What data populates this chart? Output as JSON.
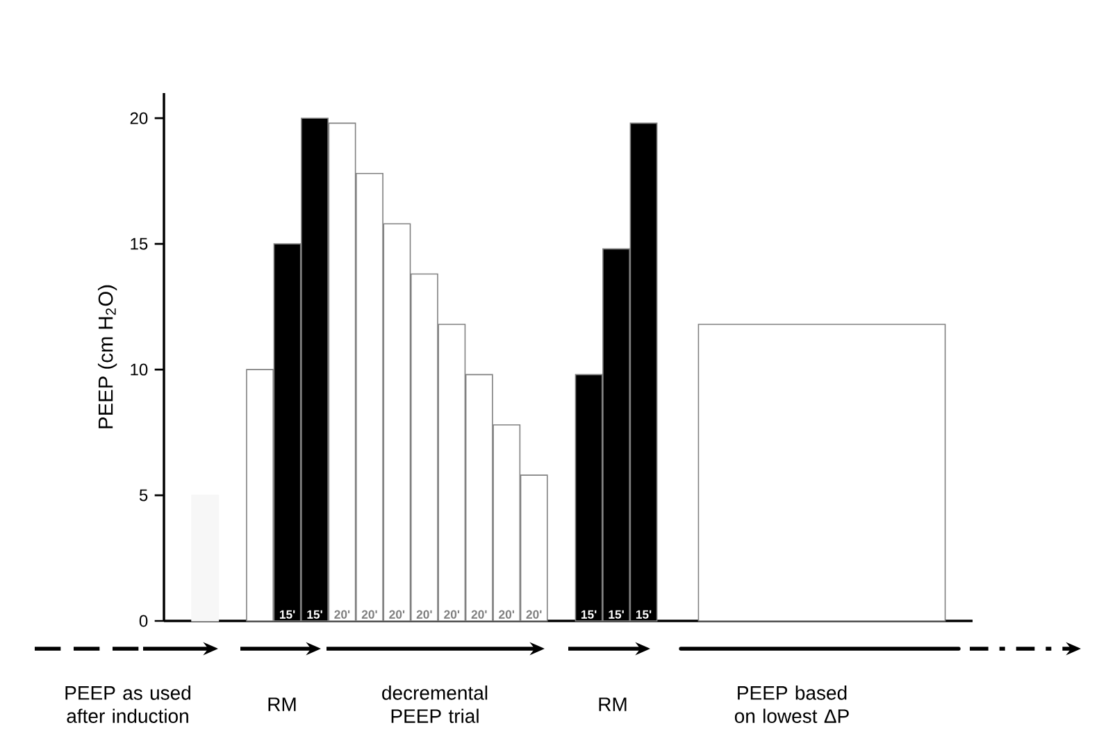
{
  "chart_data": {
    "type": "bar",
    "ylabel": "PEEP (cm H$_{2}$O)",
    "ylim": [
      0,
      21
    ],
    "yticks": [
      0,
      5,
      10,
      15,
      20
    ],
    "categories": [
      null,
      null,
      null,
      null,
      "15'",
      "15'",
      "20'",
      "20'",
      "20'",
      "20'",
      "20'",
      "20'",
      "20'",
      "20'",
      null,
      "15'",
      "15'",
      "15'",
      null,
      null,
      null,
      null,
      null,
      null,
      null,
      null,
      null,
      null,
      null
    ],
    "series": [
      {
        "values": [
          null,
          5,
          null,
          10,
          15,
          20,
          19.8,
          17.8,
          15.8,
          13.8,
          11.8,
          9.8,
          7.8,
          5.8,
          null,
          9.8,
          14.8,
          19.8,
          null,
          null,
          null,
          null,
          null,
          null,
          null,
          null,
          null,
          null,
          null
        ],
        "colors": [
          null,
          "#f7f7f7",
          null,
          "#ffffff",
          "#000000",
          "#000000",
          "#ffffff",
          "#ffffff",
          "#ffffff",
          "#ffffff",
          "#ffffff",
          "#ffffff",
          "#ffffff",
          "#ffffff",
          null,
          "#000000",
          "#000000",
          "#000000",
          null,
          null,
          null,
          null,
          null,
          null,
          null,
          null,
          null,
          null,
          null
        ]
      },
      {
        "type": "area",
        "values": [
          null,
          null,
          null,
          null,
          null,
          null,
          null,
          null,
          null,
          null,
          null,
          null,
          null,
          null,
          null,
          null,
          null,
          null,
          null,
          11.8,
          11.8,
          11.8,
          11.8,
          11.8,
          11.8,
          11.8,
          11.8,
          11.8,
          11.8
        ],
        "color": "#ffffff"
      }
    ],
    "annotations": [
      "PEEP as used after induction",
      "RM",
      "decremental PEEP trial",
      "RM",
      "PEEP based on lowest ΔP"
    ]
  }
}
